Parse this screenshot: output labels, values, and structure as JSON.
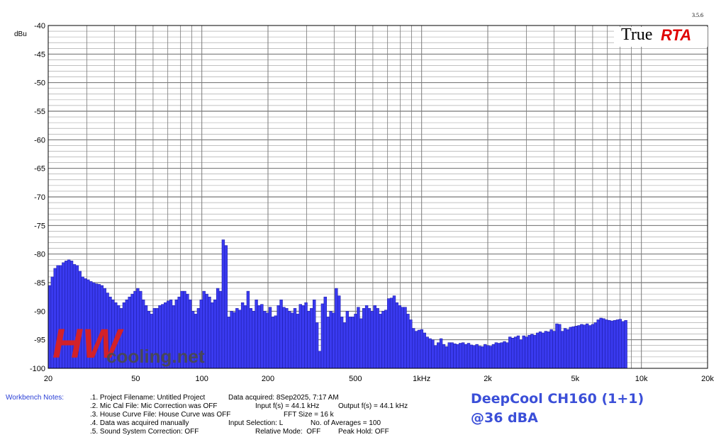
{
  "app": {
    "version": "3.5.6",
    "logo_true": "True",
    "logo_rta": "RTA"
  },
  "watermark": {
    "mark": "HW",
    "text": "cooling.net"
  },
  "title_line1": "DeepCool CH160 (1+1)",
  "title_line2": "@36 dBA",
  "notes": {
    "label": "Workbench Notes:",
    "lines": [
      ".1. Project Filename: Untitled Project",
      ".2. Mic Cal File: Mic Correction was OFF",
      ".3. House Curve File: House Curve was OFF",
      ".4. Data was acquired manually",
      ".5. Sound System Correction: OFF"
    ],
    "col2": [
      "Data acquired: 8Sep2025, 7:17 AM",
      "Input f(s) = 44.1 kHz",
      "FFT Size = 16 k",
      "Input Selection: L",
      "Relative Mode:  OFF"
    ],
    "col3": [
      "",
      "Output f(s) = 44.1 kHz",
      "",
      "No. of Averages = 100",
      "Peak Hold: OFF"
    ]
  },
  "colors": {
    "bar_fill": "#3a3af0",
    "bar_stroke": "#1a1aa0",
    "grid": "#7a7a7a",
    "title": "#3b4fd8"
  },
  "chart_data": {
    "type": "bar",
    "title": "",
    "ylabel": "dBu",
    "xscale": "log",
    "xlim": [
      20,
      20000
    ],
    "ylim": [
      -100,
      -40
    ],
    "y_ticks": [
      -40,
      -45,
      -50,
      -55,
      -60,
      -65,
      -70,
      -75,
      -80,
      -85,
      -90,
      -95,
      -100
    ],
    "x_tick_labels": [
      {
        "f": 20,
        "label": "20"
      },
      {
        "f": 50,
        "label": "50"
      },
      {
        "f": 100,
        "label": "100"
      },
      {
        "f": 200,
        "label": "200"
      },
      {
        "f": 500,
        "label": "500"
      },
      {
        "f": 1000,
        "label": "1kHz"
      },
      {
        "f": 2000,
        "label": "2k"
      },
      {
        "f": 5000,
        "label": "5k"
      },
      {
        "f": 10000,
        "label": "10k"
      },
      {
        "f": 20000,
        "label": "20k"
      }
    ],
    "grid": true,
    "bars_per_octave": 24,
    "values": [
      -85.5,
      -84,
      -82.5,
      -82,
      -82,
      -81.5,
      -81.2,
      -81,
      -81.2,
      -81.8,
      -82,
      -83,
      -84,
      -84.3,
      -84.5,
      -84.8,
      -85,
      -85.2,
      -85.3,
      -85.5,
      -86,
      -86.8,
      -87.5,
      -88,
      -88.5,
      -89,
      -89.5,
      -88.5,
      -88,
      -87.5,
      -87,
      -86.5,
      -86,
      -86.5,
      -88,
      -89,
      -90,
      -90.5,
      -89.5,
      -89.5,
      -89,
      -88.8,
      -88.5,
      -88.2,
      -88,
      -89,
      -88,
      -87.5,
      -86.5,
      -86.5,
      -87,
      -88,
      -90,
      -90.5,
      -89.5,
      -88,
      -86.5,
      -87,
      -87.5,
      -88.5,
      -88,
      -86,
      -86.5,
      -77.5,
      -78.5,
      -91,
      -90,
      -90.2,
      -89.5,
      -89.8,
      -88.5,
      -89,
      -86.5,
      -89.5,
      -90,
      -88,
      -89,
      -88.8,
      -90,
      -90.3,
      -89.3,
      -91,
      -90.8,
      -89,
      -88,
      -89.3,
      -89.5,
      -90,
      -90.3,
      -89.5,
      -90.5,
      -88.8,
      -89,
      -88.5,
      -90,
      -89.5,
      -88,
      -92,
      -97,
      -88.7,
      -87.5,
      -91,
      -90,
      -90.3,
      -86,
      -87.3,
      -91,
      -92,
      -90,
      -91,
      -91,
      -90.5,
      -89.3,
      -91.3,
      -89.5,
      -89,
      -89.5,
      -90,
      -89,
      -89.5,
      -90.5,
      -90,
      -89.8,
      -87.8,
      -87.7,
      -87.3,
      -88.5,
      -89,
      -89.3,
      -89.3,
      -90.5,
      -91.5,
      -93,
      -93.5,
      -93.3,
      -93.2,
      -93.8,
      -94.5,
      -94.8,
      -95,
      -96,
      -95.5,
      -94.8,
      -95.8,
      -96.2,
      -95.5,
      -95.5,
      -95.7,
      -95.8,
      -95.6,
      -95.5,
      -95.8,
      -95.6,
      -95.9,
      -96,
      -95.8,
      -96.1,
      -96.2,
      -95.8,
      -96,
      -96.1,
      -95.8,
      -95.5,
      -95.6,
      -95.5,
      -95.3,
      -95.5,
      -94.5,
      -94.7,
      -94.5,
      -94.3,
      -95,
      -94.3,
      -94.5,
      -94.2,
      -94,
      -94.2,
      -93.8,
      -93.6,
      -93.8,
      -93.5,
      -93.6,
      -93.2,
      -93.5,
      -92.2,
      -92.3,
      -93.5,
      -93,
      -93.2,
      -92.8,
      -92.7,
      -92.6,
      -92.5,
      -92.3,
      -92.4,
      -92.2,
      -92.5,
      -92.3,
      -92,
      -91.5,
      -91.2,
      -91.3,
      -91.5,
      -91.6,
      -91.7,
      -91.6,
      -91.5,
      -91.4,
      -91.8,
      -91.6
    ]
  }
}
